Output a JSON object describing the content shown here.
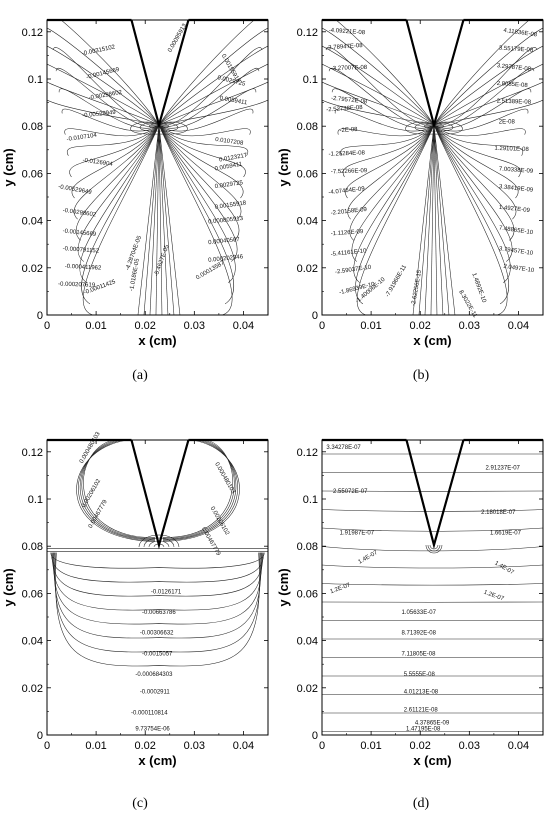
{
  "figure": {
    "panels": [
      {
        "id": "a",
        "caption": "(a)",
        "xlabel": "x (cm)",
        "ylabel": "y (cm)",
        "xticks": [
          "0",
          "0.01",
          "0.02",
          "0.03",
          "0.04"
        ],
        "yticks": [
          "0",
          "0.02",
          "0.04",
          "0.06",
          "0.08",
          "0.1",
          "0.12"
        ],
        "contour_labels": [
          "-0.00315102",
          "-0.00145669",
          "-0.00298602",
          "-0.00529949",
          "-0.0107104",
          "-0.0126904",
          "0.00095913",
          "0.00155918",
          "0.0029725",
          "0.0059411",
          "0.0107208",
          "0.0123217",
          "-0.00529649",
          "-0.00298602",
          "-0.00145669",
          "-0.000791152",
          "-0.000411962",
          "-0.000207619",
          "-0.00011425",
          "-4.28704E-05",
          "-1.0186E-05",
          "-5.4627E-05",
          "0.00013587",
          "0.000202346",
          "0.00040507",
          "0.000805913",
          "0.00155918",
          "0.0029725",
          "0.0059411"
        ]
      },
      {
        "id": "b",
        "caption": "(b)",
        "xlabel": "x (cm)",
        "ylabel": "y (cm)",
        "xticks": [
          "0",
          "0.01",
          "0.02",
          "0.03",
          "0.04"
        ],
        "yticks": [
          "0",
          "0.02",
          "0.04",
          "0.06",
          "0.08",
          "0.1",
          "0.12"
        ],
        "contour_labels": [
          "-4.09221E-08",
          "-3.78947E-08",
          "-3.27007E-08",
          "-2.79572E-08",
          "-2.52738E-08",
          "-2E-08",
          "-1.25284E-08",
          "-7.52266E-09",
          "-4.07464E-09",
          "-2.20158E-09",
          "-1.1126E-09",
          "-5.41161E-10",
          "-2.59037E-10",
          "-1.86939E-10",
          "-1.40006E-10",
          "-7.91966E-11",
          "-2.62256E-15",
          "4.11836E-08",
          "3.55179E-08",
          "3.29787E-08",
          "2.8085E-08",
          "2.51389E-08",
          "2E-08",
          "1.29101E-08",
          "7.00338E-09",
          "3.38419E-09",
          "1.4927E-09",
          "7.48865E-10",
          "3.79457E-10",
          "2.0497E-10",
          "1.4892E-10",
          "8.3022E-11"
        ]
      },
      {
        "id": "c",
        "caption": "(c)",
        "xlabel": "x (cm)",
        "ylabel": "y (cm)",
        "xticks": [
          "0",
          "0.01",
          "0.02",
          "0.03",
          "0.04"
        ],
        "yticks": [
          "0",
          "0.02",
          "0.04",
          "0.06",
          "0.08",
          "0.1",
          "0.12"
        ],
        "contour_labels": [
          "0.000480103",
          "0.00206102",
          "0.00467779",
          "0.000480103",
          "0.00206102",
          "0.00467779",
          "-0.0126171",
          "-0.00663786",
          "-0.00306632",
          "-0.0015057",
          "-0.000684303",
          "-0.0002911",
          "-0.000110814",
          "9.73754E-06"
        ]
      },
      {
        "id": "d",
        "caption": "(d)",
        "xlabel": "x (cm)",
        "ylabel": "y (cm)",
        "xticks": [
          "0",
          "0.01",
          "0.02",
          "0.03",
          "0.04"
        ],
        "yticks": [
          "0",
          "0.02",
          "0.04",
          "0.06",
          "0.08",
          "0.1",
          "0.12"
        ],
        "contour_labels": [
          "3.34278E-07",
          "2.91237E-07",
          "2.55072E-07",
          "2.18018E-07",
          "1.91987E-07",
          "1.6619E-07",
          "1.4E-07",
          "1.4E-07",
          "1.2E-07",
          "1.2E-07",
          "1.05633E-07",
          "8.71392E-08",
          "7.11805E-08",
          "5.5555E-08",
          "4.01213E-08",
          "2.61121E-08",
          "1.47195E-08",
          "4.37865E-09"
        ]
      }
    ]
  }
}
